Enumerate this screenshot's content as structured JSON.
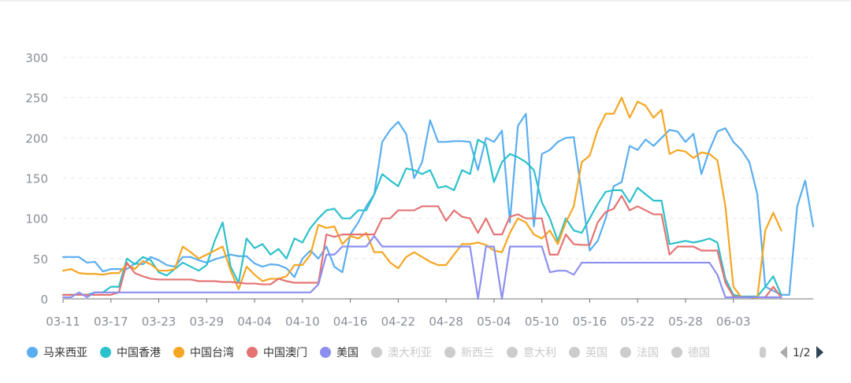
{
  "chart_data": {
    "type": "line",
    "title": "",
    "xlabel": "",
    "ylabel": "",
    "ylim": [
      0,
      300
    ],
    "yticks": [
      0,
      50,
      100,
      150,
      200,
      250,
      300
    ],
    "grid": "horizontal-dashed",
    "xtick_labels": [
      "03-11",
      "03-17",
      "03-23",
      "03-29",
      "04-04",
      "04-10",
      "04-16",
      "04-22",
      "04-28",
      "05-04",
      "05-10",
      "05-16",
      "05-22",
      "05-28",
      "06-03"
    ],
    "x_start": "03-11",
    "x_end": "06-09",
    "legend_position": "bottom-left",
    "series": [
      {
        "name": "马来西亚",
        "color": "#5aaef0",
        "active": true,
        "values": [
          52,
          52,
          52,
          45,
          46,
          34,
          37,
          37,
          37,
          44,
          43,
          52,
          48,
          42,
          40,
          52,
          52,
          48,
          45,
          49,
          52,
          55,
          53,
          53,
          44,
          40,
          43,
          42,
          38,
          27,
          50,
          60,
          50,
          65,
          40,
          33,
          80,
          95,
          115,
          130,
          195,
          210,
          220,
          205,
          150,
          170,
          222,
          195,
          195,
          196,
          196,
          195,
          160,
          200,
          195,
          209,
          95,
          215,
          230,
          90,
          180,
          185,
          195,
          200,
          201,
          130,
          60,
          72,
          100,
          140,
          145,
          190,
          185,
          198,
          190,
          200,
          210,
          208,
          195,
          205,
          155,
          185,
          208,
          212,
          195,
          185,
          170,
          130,
          15,
          10,
          5,
          5,
          115,
          147,
          90
        ]
      },
      {
        "name": "中国香港",
        "color": "#2cc1cc",
        "active": true,
        "values": [
          5,
          5,
          5,
          5,
          8,
          8,
          15,
          15,
          50,
          43,
          52,
          48,
          33,
          29,
          37,
          45,
          40,
          35,
          42,
          72,
          95,
          40,
          20,
          75,
          63,
          68,
          55,
          62,
          50,
          75,
          70,
          88,
          100,
          110,
          112,
          100,
          100,
          110,
          110,
          130,
          155,
          147,
          140,
          162,
          160,
          155,
          160,
          138,
          140,
          135,
          160,
          155,
          198,
          192,
          145,
          170,
          180,
          176,
          170,
          160,
          120,
          100,
          72,
          100,
          85,
          82,
          100,
          118,
          133,
          135,
          135,
          120,
          138,
          130,
          122,
          122,
          68,
          70,
          72,
          70,
          72,
          75,
          70,
          25,
          5,
          3,
          3,
          3,
          15,
          28,
          5
        ]
      },
      {
        "name": "中国台湾",
        "color": "#f5a623",
        "active": true,
        "values": [
          35,
          37,
          32,
          31,
          31,
          30,
          32,
          32,
          43,
          37,
          47,
          43,
          35,
          35,
          37,
          65,
          58,
          50,
          55,
          60,
          65,
          35,
          12,
          40,
          30,
          22,
          25,
          25,
          28,
          42,
          42,
          55,
          92,
          88,
          90,
          68,
          78,
          75,
          82,
          58,
          58,
          45,
          38,
          52,
          58,
          52,
          46,
          42,
          42,
          55,
          68,
          68,
          70,
          67,
          60,
          58,
          82,
          100,
          95,
          80,
          75,
          85,
          68,
          95,
          115,
          170,
          178,
          210,
          230,
          230,
          250,
          225,
          245,
          240,
          225,
          235,
          180,
          185,
          183,
          175,
          182,
          180,
          172,
          115,
          15,
          2,
          2,
          1,
          85,
          107,
          85
        ]
      },
      {
        "name": "中国澳门",
        "color": "#e57373",
        "active": true,
        "values": [
          5,
          5,
          5,
          5,
          5,
          5,
          5,
          8,
          45,
          32,
          28,
          25,
          24,
          24,
          24,
          24,
          24,
          22,
          22,
          22,
          21,
          21,
          20,
          19,
          19,
          18,
          18,
          25,
          22,
          20,
          20,
          20,
          20,
          80,
          77,
          80,
          80,
          80,
          80,
          80,
          100,
          100,
          110,
          110,
          110,
          115,
          115,
          115,
          97,
          110,
          102,
          100,
          82,
          100,
          80,
          80,
          102,
          105,
          100,
          100,
          100,
          55,
          55,
          80,
          68,
          67,
          67,
          95,
          108,
          112,
          128,
          110,
          115,
          110,
          105,
          105,
          55,
          65,
          65,
          65,
          60,
          60,
          60,
          20,
          3,
          2,
          2,
          2,
          2,
          15,
          2
        ]
      },
      {
        "name": "美国",
        "color": "#8c8ff0",
        "active": true,
        "values": [
          2,
          2,
          8,
          2,
          8,
          8,
          8,
          8,
          8,
          8,
          8,
          8,
          8,
          8,
          8,
          8,
          8,
          8,
          8,
          8,
          8,
          8,
          8,
          8,
          8,
          8,
          8,
          8,
          8,
          8,
          8,
          8,
          18,
          55,
          55,
          65,
          65,
          65,
          65,
          78,
          65,
          65,
          65,
          65,
          65,
          65,
          65,
          65,
          65,
          65,
          65,
          65,
          0,
          65,
          65,
          0,
          65,
          65,
          65,
          65,
          65,
          33,
          35,
          35,
          30,
          45,
          45,
          45,
          45,
          45,
          45,
          45,
          45,
          45,
          45,
          45,
          45,
          45,
          45,
          45,
          45,
          45,
          30,
          2,
          2,
          2,
          2,
          2,
          2,
          2,
          2
        ]
      },
      {
        "name": "澳大利亚",
        "color": "#cccccc",
        "active": false
      },
      {
        "name": "新西兰",
        "color": "#cccccc",
        "active": false
      },
      {
        "name": "意大利",
        "color": "#cccccc",
        "active": false
      },
      {
        "name": "英国",
        "color": "#cccccc",
        "active": false
      },
      {
        "name": "法国",
        "color": "#cccccc",
        "active": false
      },
      {
        "name": "德国",
        "color": "#cccccc",
        "active": false
      }
    ]
  },
  "legend": {
    "page_indicator": "1/2",
    "prev_icon": "triangle-left-icon",
    "next_icon": "triangle-right-icon"
  },
  "colors": {
    "axis": "#8a8f98",
    "grid": "#e6e8eb",
    "inactive": "#cccccc",
    "legend_text_active": "#333333",
    "legend_text_inactive": "#c8c8c8",
    "pager_disabled": "#aaaaaa",
    "pager_enabled": "#2f4554"
  }
}
